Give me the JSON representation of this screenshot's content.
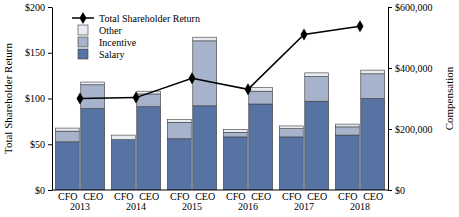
{
  "chart_data": {
    "type": "bar",
    "stacked": true,
    "y_label": "Total Shareholder Return",
    "y2_label": "Compensation",
    "categories": [
      "CFO",
      "CEO",
      "CFO",
      "CEO",
      "CFO",
      "CEO",
      "CFO",
      "CEO",
      "CFO",
      "CEO",
      "CFO",
      "CEO"
    ],
    "groups": [
      "2013",
      "2014",
      "2015",
      "2016",
      "2017",
      "2018"
    ],
    "ylim": [
      0,
      200
    ],
    "yticks": [
      {
        "value": 0,
        "label": "$0"
      },
      {
        "value": 50,
        "label": "$50"
      },
      {
        "value": 100,
        "label": "$100"
      },
      {
        "value": 150,
        "label": "$150"
      },
      {
        "value": 200,
        "label": "$200"
      }
    ],
    "y2lim": [
      0,
      600000
    ],
    "y2ticks": [
      {
        "value": 0,
        "label": "$0"
      },
      {
        "value": 200000,
        "label": "$200,000"
      },
      {
        "value": 400000,
        "label": "$400,000"
      },
      {
        "value": 600000,
        "label": "$600,000"
      }
    ],
    "legend": "upper left",
    "series": [
      {
        "name": "Salary",
        "type": "bar",
        "axis": "y2",
        "color": "#5673a3",
        "values": [
          158000,
          267000,
          165000,
          273000,
          168000,
          276000,
          174000,
          282000,
          174000,
          291000,
          180000,
          300000
        ]
      },
      {
        "name": "Incentive",
        "type": "bar",
        "axis": "y2",
        "color": "#a7b3cb",
        "values": [
          35000,
          78000,
          0,
          42000,
          54000,
          213000,
          15000,
          42000,
          27000,
          81000,
          27000,
          81000
        ]
      },
      {
        "name": "Other",
        "type": "bar",
        "axis": "y2",
        "color": "#e8ebf1",
        "values": [
          10000,
          9000,
          15000,
          9000,
          9000,
          12000,
          9000,
          12000,
          9000,
          12000,
          9000,
          12000
        ]
      },
      {
        "name": "Total Shareholder Return",
        "type": "line",
        "color": "#000000",
        "marker": "diamond",
        "line_style": "solid",
        "x": [
          "2013",
          "2014",
          "2015",
          "2016",
          "2017",
          "2018"
        ],
        "values": [
          100,
          101,
          122,
          110,
          170,
          179
        ]
      }
    ]
  }
}
